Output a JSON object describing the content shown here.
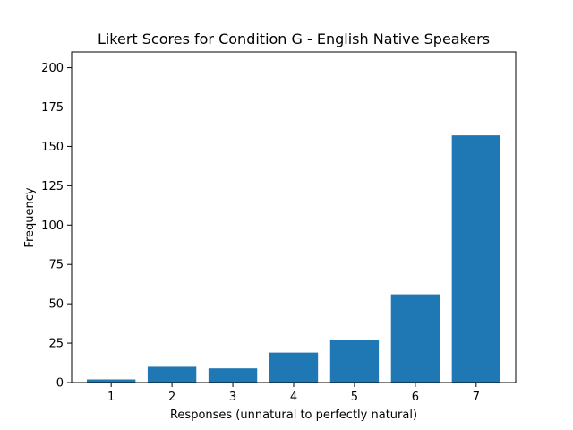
{
  "chart_data": {
    "type": "bar",
    "title": "Likert Scores for Condition G - English Native Speakers",
    "xlabel": "Responses (unnatural to perfectly natural)",
    "ylabel": "Frequency",
    "categories": [
      "1",
      "2",
      "3",
      "4",
      "5",
      "6",
      "7"
    ],
    "values": [
      2,
      10,
      9,
      19,
      27,
      56,
      157
    ],
    "ylim": [
      0,
      210
    ],
    "yticks": [
      0,
      25,
      50,
      75,
      100,
      125,
      150,
      175,
      200
    ],
    "xlim": [
      0.35,
      7.65
    ],
    "grid": false,
    "legend": "none",
    "colors": {
      "bar": "#1f77b4",
      "axis": "#000000"
    }
  }
}
